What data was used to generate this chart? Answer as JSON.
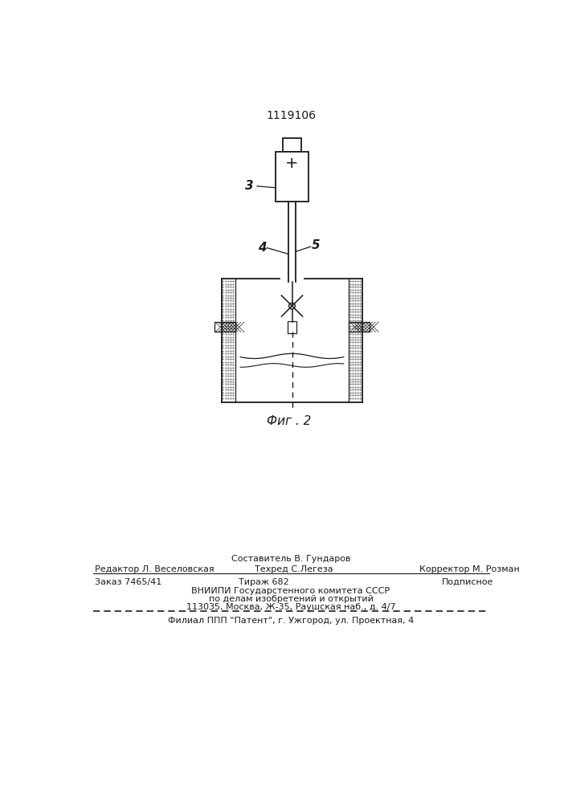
{
  "patent_number": "1119106",
  "fig_label": "Фиг . 2",
  "label_3": "3",
  "label_4": "4",
  "label_5": "5",
  "editor_line": "Редактор Л. Веселовская",
  "composer_line": "Составитель В. Гундаров",
  "techred_line": "Техред С.Легеза",
  "corrector_line": "Корректор М. Розман",
  "order_line": "Заказ 7465/41",
  "tirazh_line": "Тираж 682",
  "podpisnoe_line": "Подписное",
  "vniip_line1": "ВНИИПИ Государстенного комитета СССР",
  "vniip_line2": "по делам изобретений и открытий",
  "vniip_line3": "113035, Москва, Ж-35, Раушская наб., д. 4/7",
  "filial_line": "Филиал ППП \"Патент\", г. Ужгород, ул. Проектная, 4",
  "bg_color": "#ffffff",
  "line_color": "#1a1a1a"
}
